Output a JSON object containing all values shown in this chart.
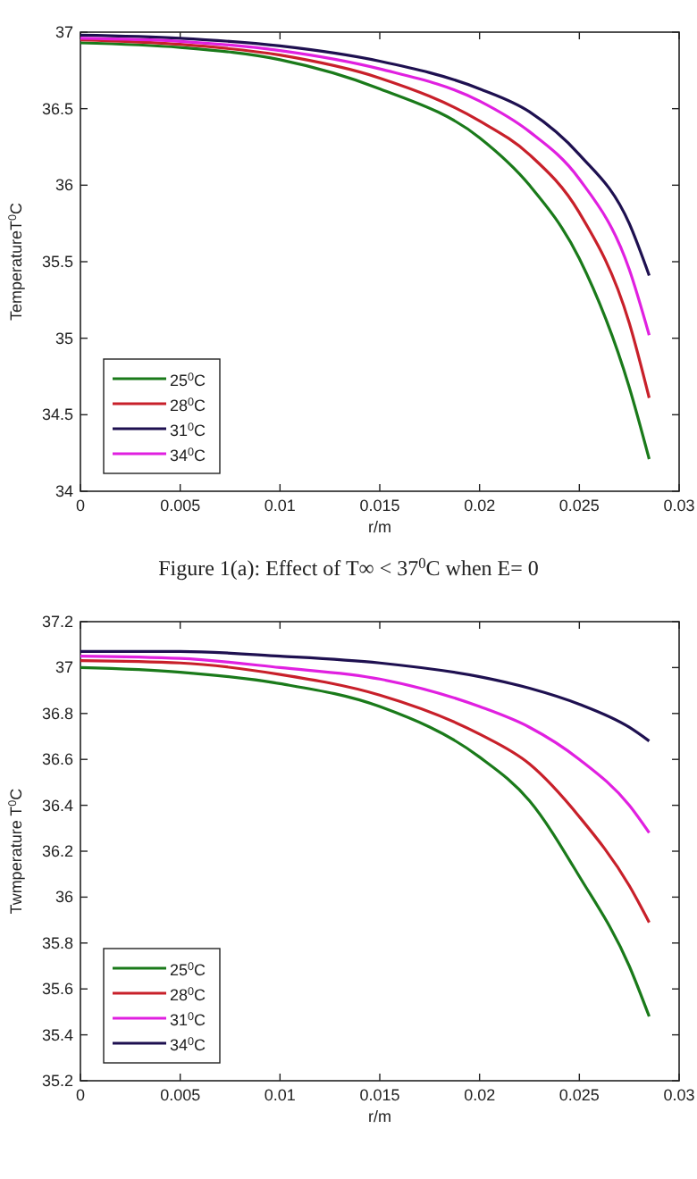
{
  "chart_data": [
    {
      "type": "line",
      "ylabel": "TemperatureT$^{0}$C",
      "xlabel": "r/m",
      "annotations": [
        "Figure 1(a): Effect of T∞ < 37$^{0}$C when E= 0"
      ],
      "x": [
        0,
        0.005,
        0.01,
        0.015,
        0.02,
        0.0225,
        0.025,
        0.0275,
        0.0285
      ],
      "xlim": [
        0,
        0.03
      ],
      "xticks": [
        0,
        0.005,
        0.01,
        0.015,
        0.02,
        0.025,
        0.03
      ],
      "ylim": [
        34,
        37
      ],
      "yticks": [
        34,
        34.5,
        35,
        35.5,
        36,
        36.5,
        37
      ],
      "legend": "bottom left",
      "grid": false,
      "line_style": "solid",
      "series": [
        {
          "name": "25$^{0}$C",
          "color": "#1a7a1a",
          "values": [
            36.93,
            36.9,
            36.82,
            36.63,
            36.31,
            36.0,
            35.52,
            34.68,
            34.21
          ]
        },
        {
          "name": "28$^{0}$C",
          "color": "#c8202a",
          "values": [
            36.95,
            36.92,
            36.85,
            36.7,
            36.42,
            36.2,
            35.82,
            35.1,
            34.61
          ]
        },
        {
          "name": "31$^{0}$C",
          "color": "#1e1050",
          "values": [
            36.98,
            36.96,
            36.91,
            36.81,
            36.63,
            36.48,
            36.2,
            35.75,
            35.41
          ]
        },
        {
          "name": "34$^{0}$C",
          "color": "#e020e0",
          "values": [
            36.96,
            36.94,
            36.88,
            36.76,
            36.55,
            36.35,
            36.04,
            35.45,
            35.02
          ]
        }
      ]
    },
    {
      "type": "line",
      "ylabel": "Twmperature T$^{0}$C",
      "xlabel": "r/m",
      "x": [
        0,
        0.005,
        0.01,
        0.015,
        0.02,
        0.0225,
        0.025,
        0.0275,
        0.0285
      ],
      "xlim": [
        0,
        0.03
      ],
      "xticks": [
        0,
        0.005,
        0.01,
        0.015,
        0.02,
        0.025,
        0.03
      ],
      "ylim": [
        35.2,
        37.2
      ],
      "yticks": [
        35.2,
        35.4,
        35.6,
        35.8,
        36,
        36.2,
        36.4,
        36.6,
        36.8,
        37,
        37.2
      ],
      "legend": "bottom left",
      "grid": false,
      "line_style": "solid",
      "series": [
        {
          "name": "25$^{0}$C",
          "color": "#1a7a1a",
          "values": [
            37.0,
            36.98,
            36.93,
            36.83,
            36.61,
            36.42,
            36.09,
            35.7,
            35.48
          ]
        },
        {
          "name": "28$^{0}$C",
          "color": "#c8202a",
          "values": [
            37.03,
            37.02,
            36.97,
            36.88,
            36.71,
            36.58,
            36.35,
            36.05,
            35.89
          ]
        },
        {
          "name": "31$^{0}$C",
          "color": "#e020e0",
          "values": [
            37.05,
            37.04,
            37.0,
            36.95,
            36.83,
            36.74,
            36.6,
            36.4,
            36.28
          ]
        },
        {
          "name": "34$^{0}$C",
          "color": "#1e1050",
          "values": [
            37.07,
            37.07,
            37.05,
            37.02,
            36.96,
            36.91,
            36.84,
            36.74,
            36.68
          ]
        }
      ]
    }
  ]
}
